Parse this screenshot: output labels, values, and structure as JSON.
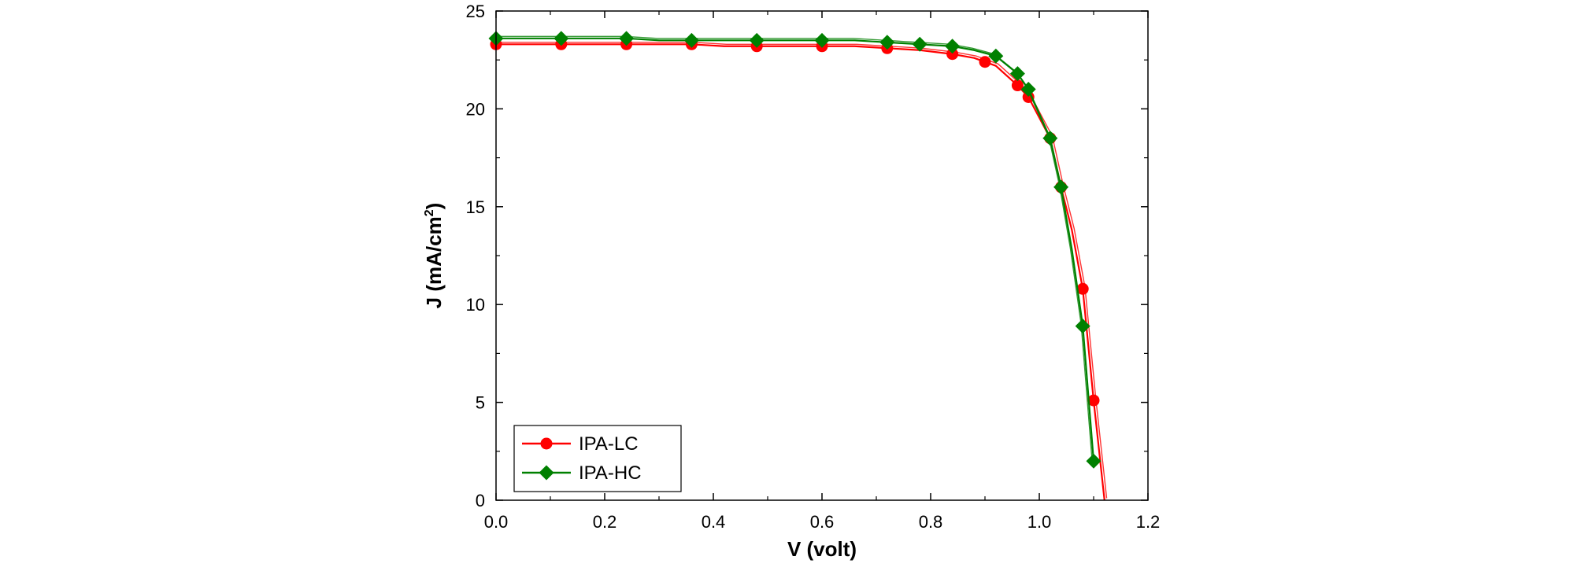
{
  "chart_data": {
    "type": "line",
    "xlabel": "V (volt)",
    "ylabel": "J (mA/cm",
    "ylabel_sup": "2",
    "ylabel_end": ")",
    "xlim": [
      0.0,
      1.2
    ],
    "ylim": [
      0,
      25
    ],
    "xticks": [
      "0.0",
      "0.2",
      "0.4",
      "0.6",
      "0.8",
      "1.0",
      "1.2"
    ],
    "yticks": [
      "0",
      "5",
      "10",
      "15",
      "20",
      "25"
    ],
    "grid": false,
    "legend_position": "bottom-left",
    "series": [
      {
        "name": "IPA-LC",
        "color": "#ff0000",
        "marker": "circle",
        "x": [
          0.0,
          0.06,
          0.12,
          0.18,
          0.24,
          0.3,
          0.36,
          0.42,
          0.48,
          0.54,
          0.6,
          0.66,
          0.72,
          0.78,
          0.84,
          0.88,
          0.9,
          0.92,
          0.96,
          0.98,
          1.02,
          1.04,
          1.06,
          1.08,
          1.1,
          1.12
        ],
        "y": [
          23.3,
          23.3,
          23.3,
          23.3,
          23.3,
          23.3,
          23.3,
          23.2,
          23.2,
          23.2,
          23.2,
          23.2,
          23.1,
          23.0,
          22.8,
          22.6,
          22.4,
          22.2,
          21.2,
          20.6,
          18.5,
          16.0,
          13.8,
          10.8,
          5.1,
          0.0
        ],
        "marker_indices": [
          0,
          2,
          4,
          6,
          8,
          10,
          12,
          14,
          16,
          18,
          19,
          20,
          21,
          23,
          24
        ]
      },
      {
        "name": "IPA-HC",
        "color": "#008000",
        "marker": "diamond",
        "x": [
          0.0,
          0.06,
          0.12,
          0.18,
          0.24,
          0.3,
          0.36,
          0.42,
          0.48,
          0.54,
          0.6,
          0.66,
          0.72,
          0.78,
          0.84,
          0.88,
          0.92,
          0.96,
          0.98,
          1.02,
          1.04,
          1.06,
          1.08,
          1.1
        ],
        "y": [
          23.6,
          23.6,
          23.6,
          23.6,
          23.6,
          23.5,
          23.5,
          23.5,
          23.5,
          23.5,
          23.5,
          23.5,
          23.4,
          23.3,
          23.2,
          23.0,
          22.7,
          21.8,
          21.0,
          18.5,
          16.0,
          12.8,
          8.9,
          2.0
        ],
        "marker_indices": [
          0,
          2,
          4,
          6,
          8,
          10,
          12,
          13,
          14,
          16,
          17,
          18,
          19,
          20,
          22,
          23
        ]
      }
    ]
  }
}
